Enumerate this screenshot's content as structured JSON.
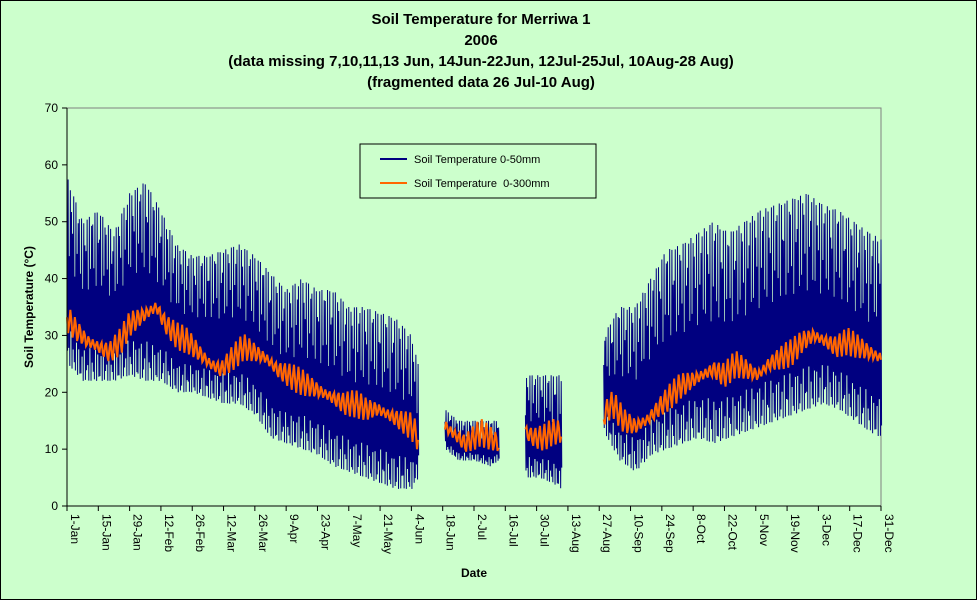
{
  "chart_data": {
    "type": "line",
    "title_lines": [
      "Soil Temperature for Merriwa 1",
      "2006",
      "(data missing 7,10,11,13 Jun, 14Jun-22Jun, 12Jul-25Jul, 10Aug-28 Aug)",
      "(fragmented data 26 Jul-10 Aug)"
    ],
    "xlabel": "Date",
    "ylabel": "Soil Temperature (°C)",
    "ylim": [
      0,
      70
    ],
    "yticks": [
      0,
      10,
      20,
      30,
      40,
      50,
      60,
      70
    ],
    "x_range_day_of_year": [
      1,
      365
    ],
    "xticks": [
      {
        "day": 1,
        "label": "1-Jan"
      },
      {
        "day": 15,
        "label": "15-Jan"
      },
      {
        "day": 29,
        "label": "29-Jan"
      },
      {
        "day": 43,
        "label": "12-Feb"
      },
      {
        "day": 57,
        "label": "26-Feb"
      },
      {
        "day": 71,
        "label": "12-Mar"
      },
      {
        "day": 85,
        "label": "26-Mar"
      },
      {
        "day": 99,
        "label": "9-Apr"
      },
      {
        "day": 113,
        "label": "23-Apr"
      },
      {
        "day": 127,
        "label": "7-May"
      },
      {
        "day": 141,
        "label": "21-May"
      },
      {
        "day": 155,
        "label": "4-Jun"
      },
      {
        "day": 169,
        "label": "18-Jun"
      },
      {
        "day": 183,
        "label": "2-Jul"
      },
      {
        "day": 197,
        "label": "16-Jul"
      },
      {
        "day": 211,
        "label": "30-Jul"
      },
      {
        "day": 225,
        "label": "13-Aug"
      },
      {
        "day": 239,
        "label": "27-Aug"
      },
      {
        "day": 253,
        "label": "10-Sep"
      },
      {
        "day": 267,
        "label": "24-Sep"
      },
      {
        "day": 281,
        "label": "8-Oct"
      },
      {
        "day": 295,
        "label": "22-Oct"
      },
      {
        "day": 309,
        "label": "5-Nov"
      },
      {
        "day": 323,
        "label": "19-Nov"
      },
      {
        "day": 337,
        "label": "3-Dec"
      },
      {
        "day": 351,
        "label": "17-Dec"
      },
      {
        "day": 365,
        "label": "31-Dec"
      }
    ],
    "legend_position": "top-center",
    "series": [
      {
        "name": "Soil Temperature 0-50mm",
        "color": "#000080",
        "segments": [
          {
            "days": [
              1,
              8,
              15,
              22,
              29,
              36,
              43,
              50,
              57,
              64,
              71,
              78,
              85,
              92,
              99,
              106,
              113,
              120,
              127,
              134,
              141,
              148,
              155,
              158
            ],
            "max": [
              58,
              50,
              52,
              48,
              55,
              57,
              52,
              46,
              44,
              44,
              45,
              46,
              44,
              41,
              38,
              40,
              38,
              38,
              35,
              35,
              34,
              33,
              30,
              25
            ],
            "min": [
              25,
              22,
              22,
              22,
              23,
              22,
              22,
              20,
              20,
              19,
              18,
              18,
              16,
              12,
              11,
              10,
              9,
              7,
              6,
              5,
              4,
              3,
              3,
              5
            ]
          },
          {
            "days": [
              170,
              176,
              183,
              190,
              194
            ],
            "max": [
              17,
              15,
              15,
              15,
              15
            ],
            "min": [
              10,
              8,
              8,
              7,
              8
            ]
          },
          {
            "days": [
              206,
              212,
              218,
              222
            ],
            "max": [
              23,
              23,
              23,
              23
            ],
            "min": [
              5,
              5,
              4,
              3
            ]
          },
          {
            "days": [
              241,
              248,
              255,
              262,
              269,
              276,
              283,
              290,
              297,
              304,
              311,
              318,
              325,
              332,
              339,
              346,
              353,
              360,
              365
            ],
            "max": [
              30,
              35,
              35,
              40,
              45,
              46,
              48,
              50,
              48,
              50,
              52,
              53,
              54,
              55,
              53,
              52,
              50,
              48,
              47
            ],
            "min": [
              13,
              8,
              6,
              9,
              10,
              11,
              12,
              11,
              12,
              13,
              14,
              15,
              16,
              17,
              18,
              17,
              15,
              13,
              12
            ]
          }
        ]
      },
      {
        "name": "Soil Temperature  0-300mm",
        "color": "#ff6600",
        "segments": [
          {
            "days": [
              1,
              5,
              10,
              15,
              20,
              25,
              29,
              33,
              37,
              41,
              45,
              50,
              55,
              60,
              65,
              70,
              75,
              80,
              85,
              90,
              95,
              100,
              105,
              110,
              115,
              120,
              125,
              130,
              135,
              140,
              145,
              150,
              155,
              158
            ],
            "values": [
              33,
              31,
              29,
              28,
              27,
              29,
              32,
              33,
              34,
              35,
              32,
              30,
              29,
              27,
              25,
              24,
              26,
              28,
              27,
              26,
              24,
              23,
              22,
              21,
              20,
              19,
              18,
              18,
              17,
              17,
              16,
              15,
              14,
              12
            ]
          },
          {
            "days": [
              170,
              173,
              176,
              179,
              183,
              186,
              190,
              194
            ],
            "values": [
              14,
              13,
              12,
              11,
              12,
              13,
              12,
              11
            ]
          },
          {
            "days": [
              206,
              210,
              214,
              218,
              222
            ],
            "values": [
              13,
              12,
              12,
              13,
              13
            ]
          },
          {
            "days": [
              241,
              245,
              250,
              255,
              260,
              265,
              270,
              275,
              280,
              285,
              290,
              295,
              300,
              305,
              310,
              315,
              320,
              325,
              330,
              335,
              340,
              345,
              350,
              355,
              360,
              365
            ],
            "values": [
              16,
              18,
              15,
              14,
              15,
              17,
              19,
              21,
              22,
              23,
              24,
              23,
              25,
              24,
              23,
              25,
              26,
              27,
              29,
              30,
              29,
              28,
              29,
              28,
              27,
              26
            ]
          }
        ]
      }
    ]
  }
}
